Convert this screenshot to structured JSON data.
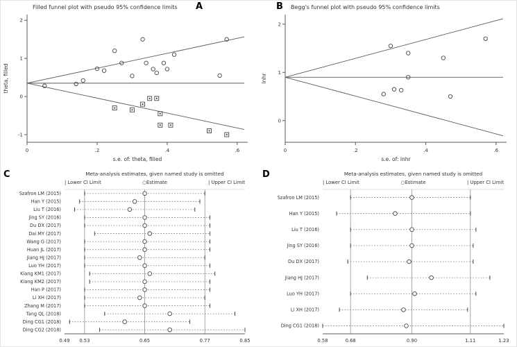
{
  "figure": {
    "background": "#ffffff",
    "axis_color": "#595959",
    "marker_color": "#444444",
    "gridline_color": "#909090",
    "ci_line_color": "#777777"
  },
  "panels": {
    "a": {
      "label": "A"
    },
    "b": {
      "label": "B"
    },
    "c": {
      "label": "C"
    },
    "d": {
      "label": "D"
    }
  },
  "chart_data": [
    {
      "panel": "A",
      "type": "scatter",
      "subtype": "funnel",
      "title": "Filled funnel plot with pseudo 95% confidence limits",
      "xlabel": "s.e. of: theta, filled",
      "ylabel": "theta, filled",
      "xlim": [
        0,
        0.63
      ],
      "ylim": [
        -1.2,
        2.15
      ],
      "xticks": [
        0,
        0.2,
        0.4,
        0.6
      ],
      "xtick_labels": [
        "0",
        ".2",
        ".4",
        ".6"
      ],
      "yticks": [
        -1,
        0,
        1,
        2
      ],
      "ytick_labels": [
        "-1",
        "0",
        "1",
        "2"
      ],
      "center": 0.35,
      "se_max": 0.62,
      "z": 1.96,
      "grid": false,
      "series": [
        {
          "name": "observed studies",
          "marker": "circle",
          "points": [
            [
              0.05,
              0.28
            ],
            [
              0.14,
              0.33
            ],
            [
              0.16,
              0.42
            ],
            [
              0.2,
              0.73
            ],
            [
              0.22,
              0.68
            ],
            [
              0.25,
              1.2
            ],
            [
              0.27,
              0.88
            ],
            [
              0.3,
              0.54
            ],
            [
              0.33,
              1.5
            ],
            [
              0.34,
              0.88
            ],
            [
              0.36,
              0.72
            ],
            [
              0.37,
              0.62
            ],
            [
              0.39,
              0.88
            ],
            [
              0.4,
              0.72
            ],
            [
              0.42,
              1.1
            ],
            [
              0.55,
              0.55
            ],
            [
              0.57,
              1.5
            ]
          ]
        },
        {
          "name": "filled (imputed) studies",
          "marker": "square",
          "points": [
            [
              0.25,
              -0.3
            ],
            [
              0.3,
              -0.35
            ],
            [
              0.33,
              -0.2
            ],
            [
              0.35,
              -0.05
            ],
            [
              0.37,
              -0.05
            ],
            [
              0.38,
              -0.45
            ],
            [
              0.38,
              -0.75
            ],
            [
              0.41,
              -0.75
            ],
            [
              0.52,
              -0.9
            ],
            [
              0.57,
              -1.0
            ]
          ]
        }
      ]
    },
    {
      "panel": "B",
      "type": "scatter",
      "subtype": "funnel",
      "title": "Begg's funnel plot with pseudo 95% confidence limits",
      "xlabel": "s.e. of: lnhr",
      "ylabel": "lnhr",
      "xlim": [
        0,
        0.63
      ],
      "ylim": [
        -0.45,
        2.2
      ],
      "xticks": [
        0,
        0.2,
        0.4,
        0.6
      ],
      "xtick_labels": [
        "0",
        ".2",
        ".4",
        ".6"
      ],
      "yticks": [
        0,
        1,
        2
      ],
      "ytick_labels": [
        "0",
        "1",
        "2"
      ],
      "center": 0.9,
      "se_max": 0.62,
      "z": 1.96,
      "grid": false,
      "series": [
        {
          "name": "studies",
          "marker": "circle",
          "points": [
            [
              0.28,
              0.55
            ],
            [
              0.3,
              1.55
            ],
            [
              0.31,
              0.65
            ],
            [
              0.33,
              0.63
            ],
            [
              0.35,
              1.4
            ],
            [
              0.35,
              0.9
            ],
            [
              0.45,
              1.3
            ],
            [
              0.47,
              0.5
            ],
            [
              0.57,
              1.7
            ]
          ]
        }
      ]
    },
    {
      "panel": "C",
      "type": "scatter",
      "subtype": "sensitivity",
      "title": "Meta-analysis estimates, given named study is omitted",
      "legend": [
        "Lower CI Limit",
        "Estimate",
        "Upper CI Limit"
      ],
      "legend_position": "top",
      "xlim": [
        0.49,
        0.85
      ],
      "xticks": [
        0.49,
        0.53,
        0.65,
        0.77,
        0.85
      ],
      "xtick_labels": [
        "0.49",
        "0.53",
        "0.65",
        "0.77",
        "0.85"
      ],
      "vlines": [
        0.53,
        0.65,
        0.77
      ],
      "studies": [
        {
          "label": "Szafron LM (2015)",
          "lower": 0.53,
          "estimate": 0.65,
          "upper": 0.77
        },
        {
          "label": "Han Y (2015)",
          "lower": 0.52,
          "estimate": 0.63,
          "upper": 0.76
        },
        {
          "label": "Liu T (2016)",
          "lower": 0.51,
          "estimate": 0.62,
          "upper": 0.75
        },
        {
          "label": "Jing SY (2016)",
          "lower": 0.53,
          "estimate": 0.65,
          "upper": 0.78
        },
        {
          "label": "Du DX (2017)",
          "lower": 0.53,
          "estimate": 0.65,
          "upper": 0.78
        },
        {
          "label": "Dai MY (2017)",
          "lower": 0.55,
          "estimate": 0.66,
          "upper": 0.78
        },
        {
          "label": "Wang G (2017)",
          "lower": 0.53,
          "estimate": 0.65,
          "upper": 0.78
        },
        {
          "label": "Huan JL (2017)",
          "lower": 0.53,
          "estimate": 0.65,
          "upper": 0.78
        },
        {
          "label": "Jiang HJ (2017)",
          "lower": 0.53,
          "estimate": 0.64,
          "upper": 0.77
        },
        {
          "label": "Luo YH (2017)",
          "lower": 0.53,
          "estimate": 0.65,
          "upper": 0.78
        },
        {
          "label": "Kiang KM1 (2017)",
          "lower": 0.54,
          "estimate": 0.66,
          "upper": 0.79
        },
        {
          "label": "Kiang KM2 (2017)",
          "lower": 0.54,
          "estimate": 0.65,
          "upper": 0.78
        },
        {
          "label": "Han P (2017)",
          "lower": 0.53,
          "estimate": 0.65,
          "upper": 0.78
        },
        {
          "label": "Li XH (2017)",
          "lower": 0.53,
          "estimate": 0.64,
          "upper": 0.77
        },
        {
          "label": "Zhang M (2017)",
          "lower": 0.53,
          "estimate": 0.65,
          "upper": 0.78
        },
        {
          "label": "Tang QL (2018)",
          "lower": 0.57,
          "estimate": 0.7,
          "upper": 0.83
        },
        {
          "label": "Ding CG1 (2018)",
          "lower": 0.5,
          "estimate": 0.61,
          "upper": 0.74
        },
        {
          "label": "Ding CG2 (2018)",
          "lower": 0.56,
          "estimate": 0.7,
          "upper": 0.85
        }
      ]
    },
    {
      "panel": "D",
      "type": "scatter",
      "subtype": "sensitivity",
      "title": "Meta-analysis estimates, given named study is omitted",
      "legend": [
        "Lower CI Limit",
        "Estimate",
        "Upper CI Limit"
      ],
      "legend_position": "top",
      "xlim": [
        0.58,
        1.23
      ],
      "xticks": [
        0.58,
        0.68,
        0.9,
        1.11,
        1.23
      ],
      "xtick_labels": [
        "0.58",
        "0.68",
        "0.90",
        "1.11",
        "1.23"
      ],
      "vlines": [
        0.68,
        0.9,
        1.11
      ],
      "studies": [
        {
          "label": "Szafron LM (2015)",
          "lower": 0.68,
          "estimate": 0.9,
          "upper": 1.11
        },
        {
          "label": "Han Y (2015)",
          "lower": 0.63,
          "estimate": 0.84,
          "upper": 1.11
        },
        {
          "label": "Liu T (2016)",
          "lower": 0.68,
          "estimate": 0.9,
          "upper": 1.13
        },
        {
          "label": "Jing SY (2016)",
          "lower": 0.68,
          "estimate": 0.9,
          "upper": 1.12
        },
        {
          "label": "Du DX (2017)",
          "lower": 0.67,
          "estimate": 0.89,
          "upper": 1.12
        },
        {
          "label": "Jiang HJ (2017)",
          "lower": 0.74,
          "estimate": 0.97,
          "upper": 1.18
        },
        {
          "label": "Luo YH (2017)",
          "lower": 0.68,
          "estimate": 0.91,
          "upper": 1.13
        },
        {
          "label": "Li XH (2017)",
          "lower": 0.64,
          "estimate": 0.87,
          "upper": 1.1
        },
        {
          "label": "Ding CG1 (2018)",
          "lower": 0.58,
          "estimate": 0.88,
          "upper": 1.23
        }
      ]
    }
  ]
}
